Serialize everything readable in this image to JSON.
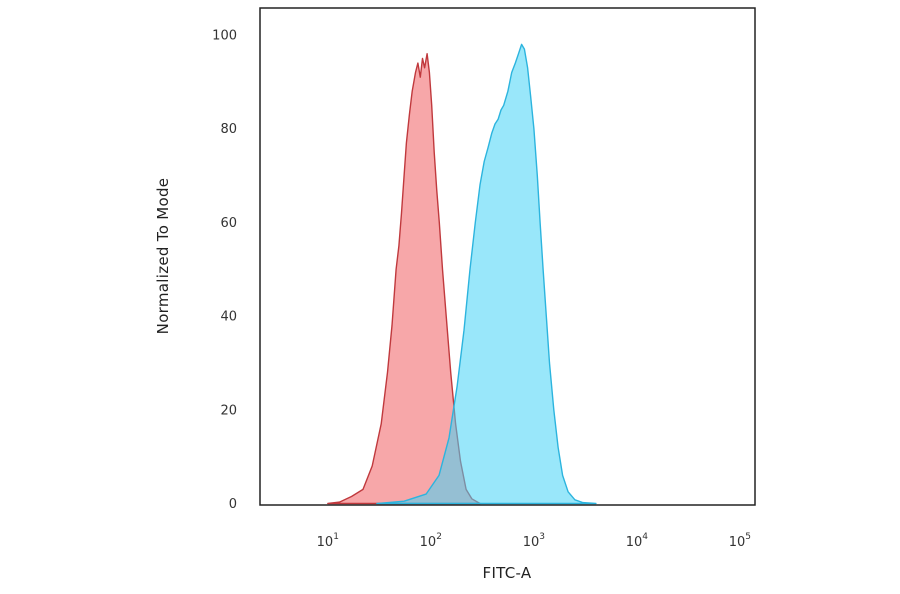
{
  "chart_data": {
    "type": "area",
    "title": "",
    "xlabel": "FITC-A",
    "ylabel": "Normalized To Mode",
    "x_scale": "log",
    "xlim": [
      2.2,
      140000
    ],
    "ylim": [
      0,
      100
    ],
    "y_ticks": [
      0,
      20,
      40,
      60,
      80,
      100
    ],
    "y_tick_labels": [
      "0",
      "20",
      "40",
      "60",
      "80",
      "100"
    ],
    "x_ticks": [
      {
        "value": 10,
        "base": "10",
        "exp": "1"
      },
      {
        "value": 100,
        "base": "10",
        "exp": "2"
      },
      {
        "value": 1000,
        "base": "10",
        "exp": "3"
      },
      {
        "value": 10000,
        "base": "10",
        "exp": "4"
      },
      {
        "value": 100000,
        "base": "10",
        "exp": "5"
      }
    ],
    "grid": false,
    "legend": "none",
    "series": [
      {
        "color": "#f4898c",
        "stroke": "#c0393d",
        "opacity": 0.75,
        "points": [
          [
            10,
            0
          ],
          [
            13,
            0.3
          ],
          [
            17,
            1.5
          ],
          [
            22,
            3
          ],
          [
            27,
            8
          ],
          [
            33,
            17
          ],
          [
            38,
            28
          ],
          [
            42,
            38
          ],
          [
            46,
            50
          ],
          [
            49,
            55
          ],
          [
            52,
            62
          ],
          [
            55,
            70
          ],
          [
            58,
            77
          ],
          [
            62,
            83
          ],
          [
            66,
            88
          ],
          [
            71,
            92
          ],
          [
            75,
            94
          ],
          [
            79,
            91
          ],
          [
            83,
            95
          ],
          [
            87,
            93
          ],
          [
            92,
            96
          ],
          [
            97,
            92
          ],
          [
            102,
            85
          ],
          [
            108,
            75
          ],
          [
            114,
            67
          ],
          [
            121,
            60
          ],
          [
            130,
            50
          ],
          [
            141,
            40
          ],
          [
            156,
            28
          ],
          [
            174,
            17
          ],
          [
            194,
            9
          ],
          [
            220,
            3
          ],
          [
            250,
            1
          ],
          [
            300,
            0
          ]
        ]
      },
      {
        "color": "#45d4f5",
        "stroke": "#2cb4de",
        "opacity": 0.55,
        "points": [
          [
            30,
            0
          ],
          [
            55,
            0.5
          ],
          [
            90,
            2
          ],
          [
            120,
            6
          ],
          [
            150,
            14
          ],
          [
            180,
            25
          ],
          [
            210,
            37
          ],
          [
            240,
            50
          ],
          [
            270,
            60
          ],
          [
            300,
            68
          ],
          [
            330,
            73
          ],
          [
            360,
            76
          ],
          [
            390,
            79
          ],
          [
            420,
            81
          ],
          [
            450,
            82
          ],
          [
            480,
            84
          ],
          [
            510,
            85
          ],
          [
            560,
            88
          ],
          [
            610,
            92
          ],
          [
            660,
            94
          ],
          [
            710,
            96
          ],
          [
            760,
            98
          ],
          [
            810,
            97
          ],
          [
            870,
            93
          ],
          [
            930,
            87
          ],
          [
            1000,
            80
          ],
          [
            1080,
            70
          ],
          [
            1150,
            60
          ],
          [
            1230,
            50
          ],
          [
            1320,
            40
          ],
          [
            1420,
            30
          ],
          [
            1560,
            20
          ],
          [
            1720,
            12
          ],
          [
            1900,
            6
          ],
          [
            2150,
            2.5
          ],
          [
            2500,
            0.8
          ],
          [
            3000,
            0.2
          ],
          [
            4000,
            0
          ]
        ]
      }
    ]
  }
}
